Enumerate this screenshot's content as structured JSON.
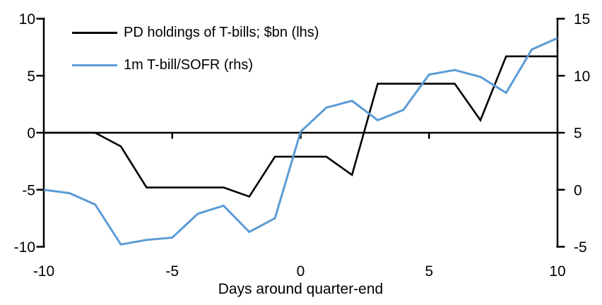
{
  "chart_data": {
    "type": "line",
    "xlabel": "Days around quarter-end",
    "x": [
      -10,
      -9,
      -8,
      -7,
      -6,
      -5,
      -4,
      -3,
      -2,
      -1,
      0,
      1,
      2,
      3,
      4,
      5,
      6,
      7,
      8,
      9,
      10
    ],
    "x_ticks": [
      -10,
      -5,
      0,
      5,
      10
    ],
    "left_axis": {
      "ticks": [
        10,
        5,
        0,
        -5,
        -10
      ],
      "range": [
        -10,
        10
      ]
    },
    "right_axis": {
      "ticks": [
        15,
        10,
        5,
        0,
        -5
      ],
      "range": [
        -5,
        15
      ]
    },
    "grid": false,
    "legend_position": "top-left",
    "series": [
      {
        "name": "PD holdings of T-bills; $bn (lhs)",
        "axis": "lhs",
        "color": "#000000",
        "values": [
          0,
          0,
          0,
          -1.2,
          -4.8,
          -4.8,
          -4.8,
          -4.8,
          -5.6,
          -2.1,
          -2.1,
          -2.1,
          -3.7,
          4.3,
          4.3,
          4.3,
          4.3,
          1.1,
          6.7,
          6.7,
          6.7
        ]
      },
      {
        "name": "1m T-bill/SOFR (rhs)",
        "axis": "rhs",
        "color": "#5B9BD5",
        "values": [
          0,
          -0.3,
          -1.3,
          -4.8,
          -4.4,
          -4.2,
          -2.1,
          -1.4,
          -3.7,
          -2.5,
          5.1,
          7.2,
          7.8,
          6.1,
          7.0,
          10.1,
          10.5,
          9.9,
          8.5,
          12.3,
          13.3
        ]
      }
    ]
  },
  "colors": {
    "background": "#FFFFFF",
    "axis": "#000000",
    "black_series": "#000000",
    "blue_series": "#5B9BD5"
  }
}
